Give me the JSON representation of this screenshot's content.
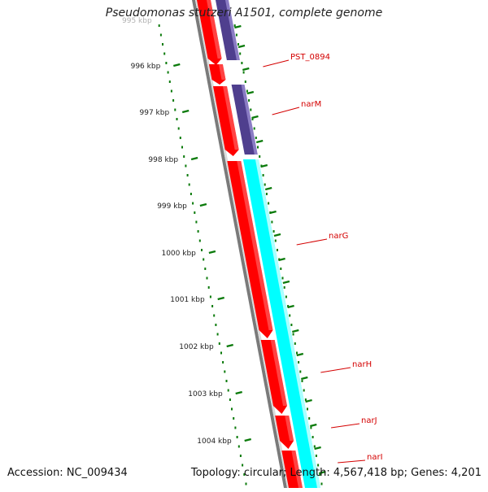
{
  "title": "Pseudomonas stutzeri A1501, complete genome",
  "footer": {
    "accession": "Accession: NC_009434",
    "summary": "Topology: circular; Length: 4,567,418 bp; Genes: 4,201"
  },
  "colors": {
    "forward_cds": "#ff0000",
    "reverse_cds": "#4f3f8e",
    "operon_block": "#00ffff",
    "backbone": "#7a7a7a",
    "ticks": "#0a7a0a",
    "gene_labels": "#d40000"
  },
  "tick_labels": [
    "995 kbp",
    "996 kbp",
    "997 kbp",
    "998 kbp",
    "999 kbp",
    "1000 kbp",
    "1001 kbp",
    "1002 kbp",
    "1003 kbp",
    "1004 kbp"
  ],
  "gene_labels": [
    "PST_0894",
    "narM",
    "narG",
    "narH",
    "narJ",
    "narI"
  ]
}
